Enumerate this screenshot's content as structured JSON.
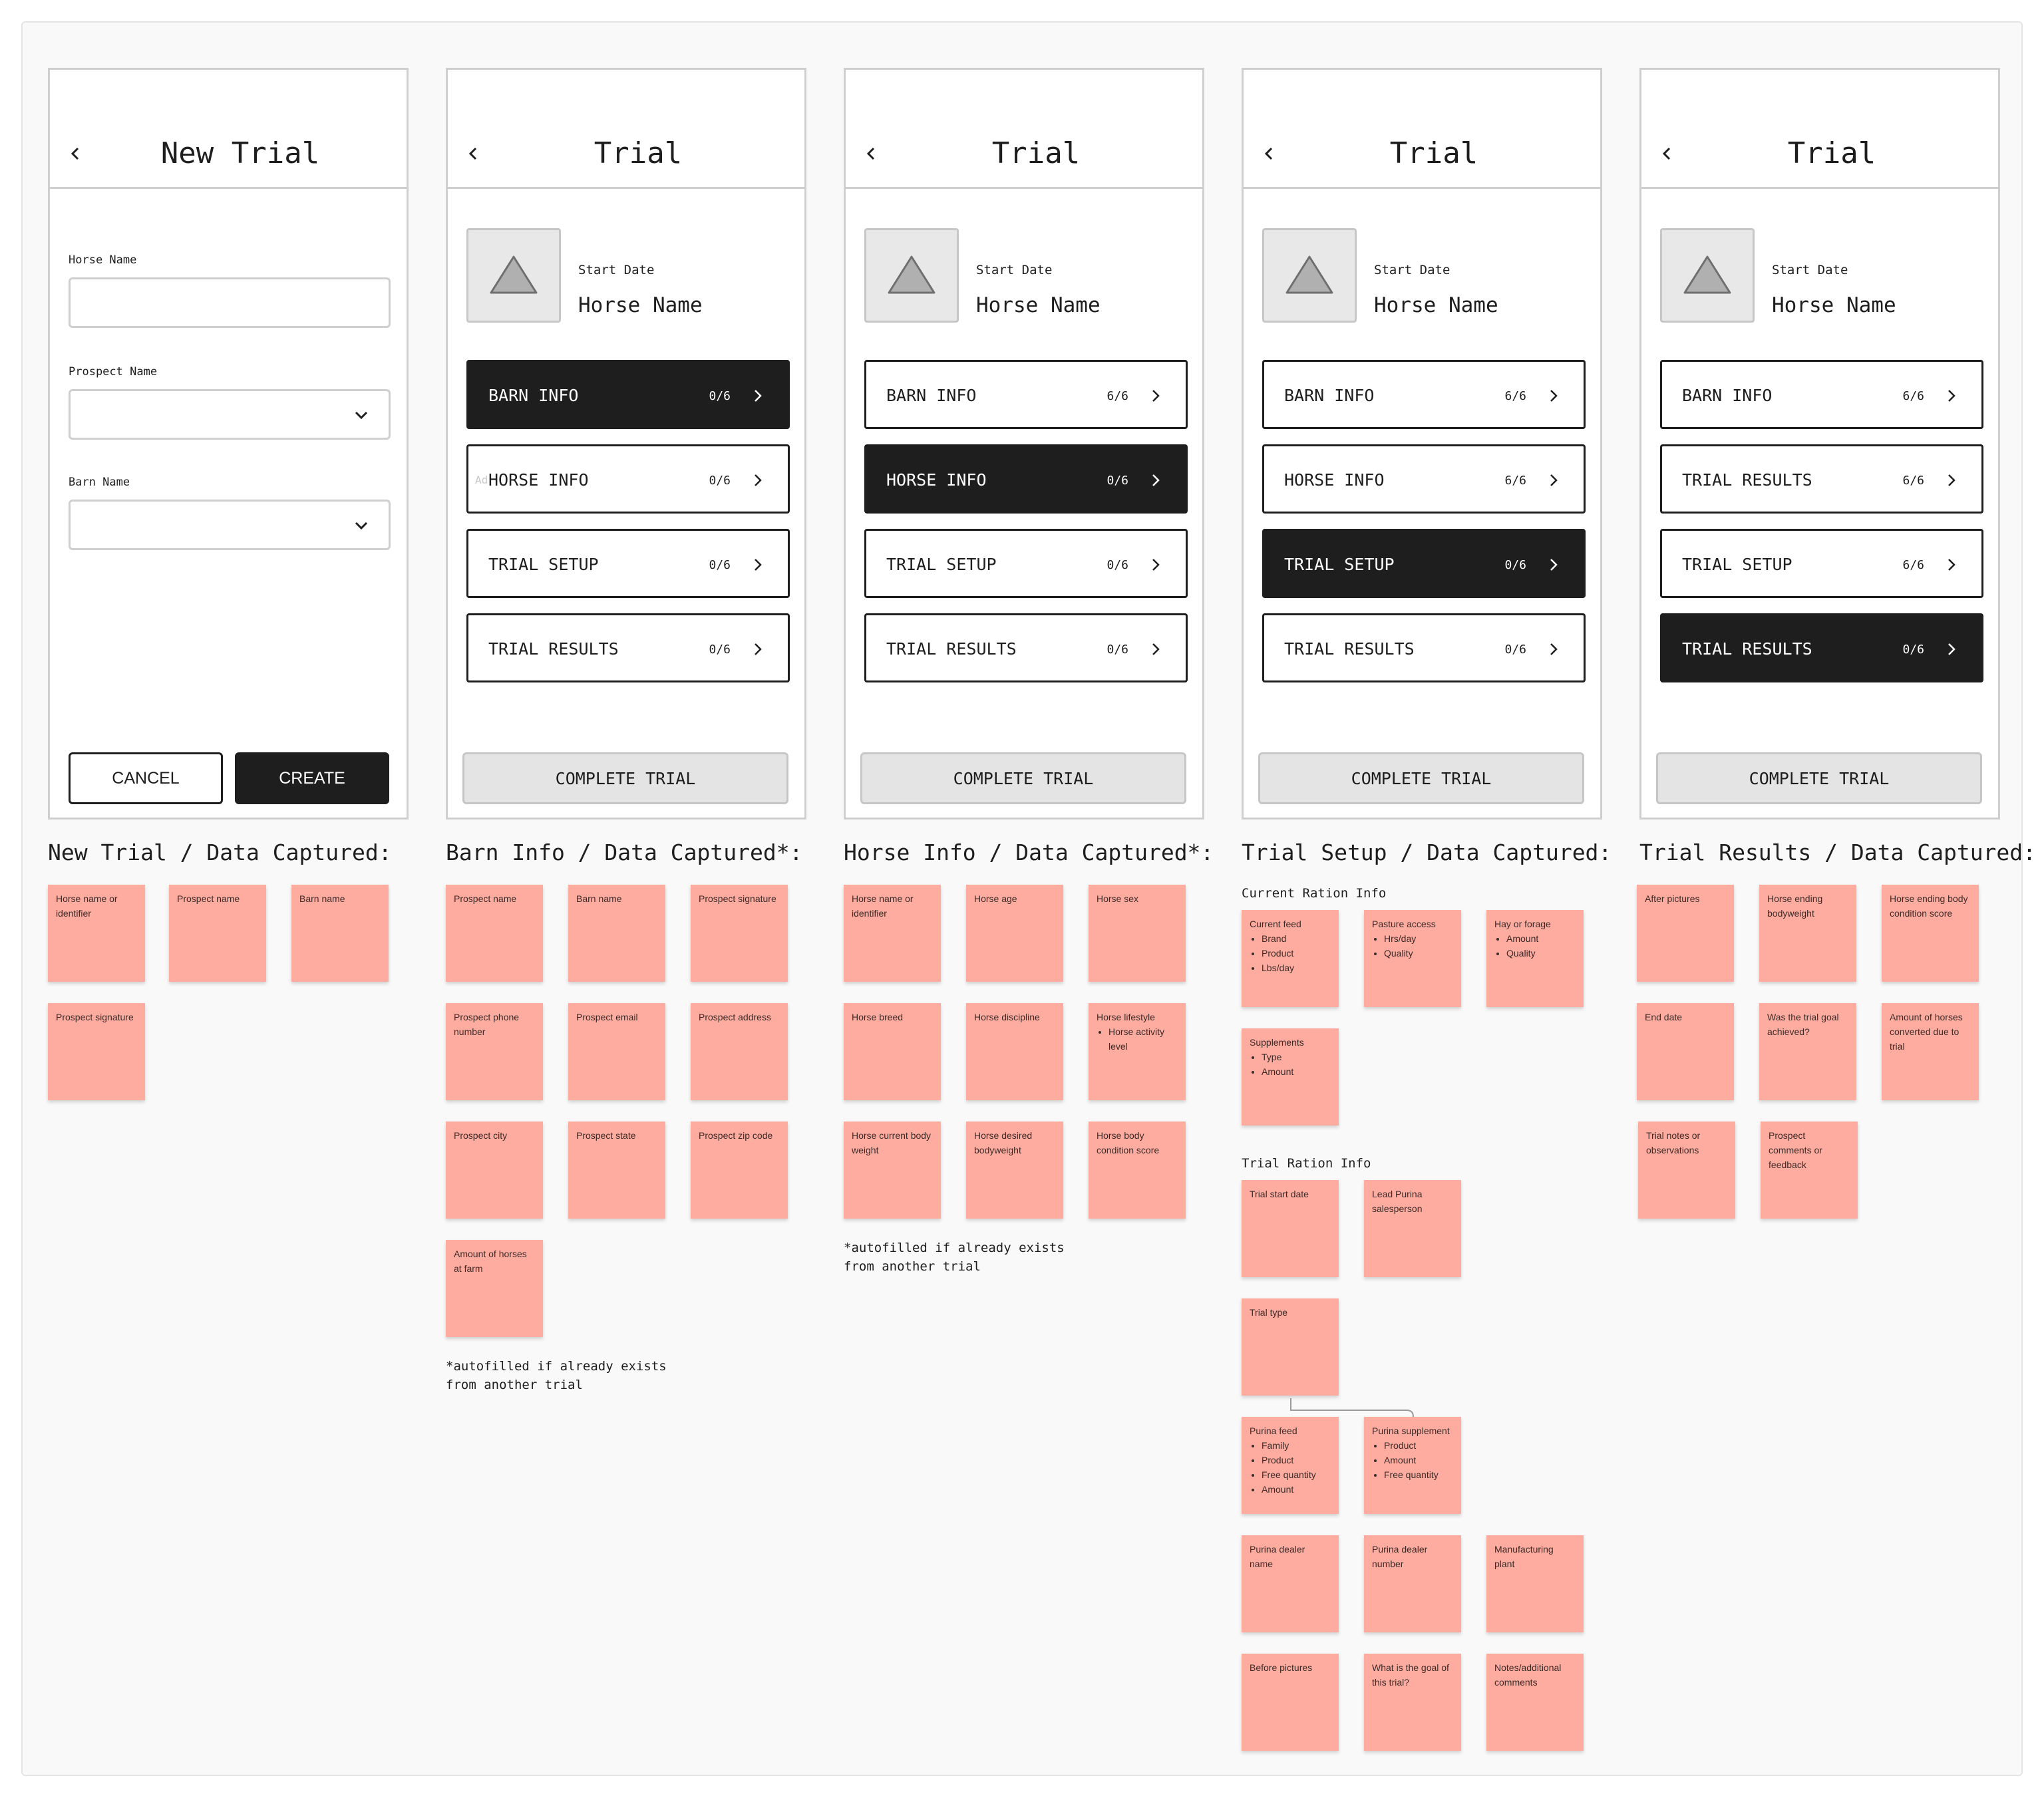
{
  "screens": {
    "new_trial": {
      "title": "New Trial",
      "fields": [
        {
          "label": "Horse Name",
          "value": ""
        },
        {
          "label": "Prospect Name",
          "value": ""
        },
        {
          "label": "Barn Name",
          "value": ""
        }
      ],
      "cancel_label": "CANCEL",
      "create_label": "CREATE"
    },
    "trial_title": "Trial",
    "start_date_label": "Start Date",
    "horse_name_label": "Horse Name",
    "complete_label": "COMPLETE TRIAL",
    "ghost_text": "Ad",
    "barn": [
      {
        "label": "BARN INFO",
        "count": "0/6"
      },
      {
        "label": "HORSE INFO",
        "count": "0/6"
      },
      {
        "label": "TRIAL SETUP",
        "count": "0/6"
      },
      {
        "label": "TRIAL RESULTS",
        "count": "0/6"
      }
    ],
    "horse": [
      {
        "label": "BARN INFO",
        "count": "6/6"
      },
      {
        "label": "HORSE INFO",
        "count": "0/6"
      },
      {
        "label": "TRIAL SETUP",
        "count": "0/6"
      },
      {
        "label": "TRIAL RESULTS",
        "count": "0/6"
      }
    ],
    "setup": [
      {
        "label": "BARN INFO",
        "count": "6/6"
      },
      {
        "label": "HORSE INFO",
        "count": "6/6"
      },
      {
        "label": "TRIAL SETUP",
        "count": "0/6"
      },
      {
        "label": "TRIAL RESULTS",
        "count": "0/6"
      }
    ],
    "results": [
      {
        "label": "BARN INFO",
        "count": "6/6"
      },
      {
        "label": "TRIAL RESULTS",
        "count": "6/6"
      },
      {
        "label": "TRIAL SETUP",
        "count": "6/6"
      },
      {
        "label": "TRIAL RESULTS",
        "count": "0/6"
      }
    ]
  },
  "captured": {
    "new_trial": {
      "heading": "New Trial / Data Captured:",
      "notes": [
        "Horse name or identifier",
        "Prospect name",
        "Barn name",
        "Prospect signature"
      ]
    },
    "barn": {
      "heading": "Barn Info / Data Captured*:",
      "notes": [
        "Prospect name",
        "Barn name",
        "Prospect signature",
        "Prospect phone number",
        "Prospect email",
        "Prospect address",
        "Prospect city",
        "Prospect state",
        "Prospect zip code",
        "Amount of horses at farm"
      ],
      "footnote": "*autofilled if already exists\nfrom another trial"
    },
    "horse": {
      "heading": "Horse Info / Data Captured*:",
      "notes": [
        "Horse name or identifier",
        "Horse age",
        "Horse sex",
        "Horse breed",
        "Horse discipline",
        "Horse lifestyle",
        "Horse current body weight",
        "Horse desired bodyweight",
        "Horse body condition score"
      ],
      "lifestyle_item": "Horse activity level",
      "footnote": "*autofilled if already exists\nfrom another trial"
    },
    "setup": {
      "heading": "Trial Setup / Data Captured:",
      "current_ration_label": "Current Ration Info",
      "current_feed": {
        "title": "Current feed",
        "items": [
          "Brand",
          "Product",
          "Lbs/day"
        ]
      },
      "pasture": {
        "title": "Pasture access",
        "items": [
          "Hrs/day",
          "Quality"
        ]
      },
      "hay": {
        "title": "Hay or forage",
        "items": [
          "Amount",
          "Quality"
        ]
      },
      "supplements": {
        "title": "Supplements",
        "items": [
          "Type",
          "Amount"
        ]
      },
      "trial_ration_label": "Trial Ration Info",
      "trial_start_date": "Trial start date",
      "lead_salesperson": "Lead Purina salesperson",
      "trial_type": "Trial type",
      "purina_feed": {
        "title": "Purina feed",
        "items": [
          "Family",
          "Product",
          "Free quantity",
          "Amount"
        ]
      },
      "purina_supplement": {
        "title": "Purina supplement",
        "items": [
          "Product",
          "Amount",
          "Free quantity"
        ]
      },
      "dealer_name": "Purina dealer name",
      "dealer_number": "Purina dealer number",
      "plant": "Manufacturing plant",
      "before_pictures": "Before pictures",
      "goal": "What is the goal of this trial?",
      "notes_comments": "Notes/additional comments"
    },
    "results": {
      "heading": "Trial Results / Data Captured:",
      "notes": [
        "After pictures",
        "Horse ending bodyweight",
        "Horse ending body condition score",
        "End date",
        "Was the trial goal achieved?",
        "Amount of horses converted due to trial",
        "Trial notes or observations",
        "Prospect comments or feedback"
      ]
    }
  },
  "colors": {
    "sticky": "#ffaca0",
    "dark": "#1e1e1e",
    "border": "#cfcfcf",
    "button_gray": "#e4e4e4"
  },
  "icons": [
    "chevron-left-icon",
    "chevron-down-icon",
    "chevron-right-icon",
    "image-placeholder-icon"
  ]
}
